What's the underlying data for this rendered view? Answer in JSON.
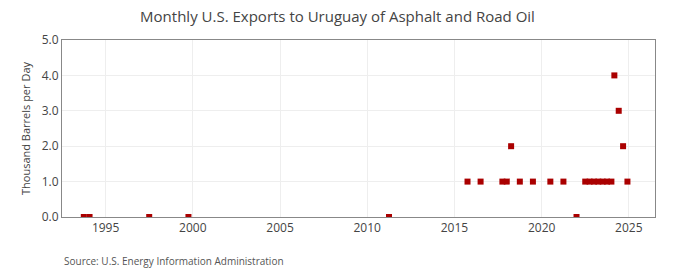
{
  "chart_data": {
    "type": "scatter",
    "title": "Monthly U.S. Exports to Uruguay of Asphalt and Road Oil",
    "ylabel": "Thousand Barrels per Day",
    "annotations": [
      "Source: U.S. Energy Information Administration"
    ],
    "x": [
      1993.75,
      1994.08,
      1997.5,
      1999.75,
      2011.25,
      2015.75,
      2016.5,
      2017.75,
      2018.0,
      2018.25,
      2018.75,
      2019.5,
      2020.5,
      2021.25,
      2022.0,
      2022.5,
      2022.75,
      2023.0,
      2023.25,
      2023.5,
      2023.75,
      2024.0,
      2024.17,
      2024.42,
      2024.67,
      2024.92
    ],
    "values": [
      0.0,
      0.0,
      0.0,
      0.0,
      0.0,
      1.0,
      1.0,
      1.0,
      1.0,
      2.0,
      1.0,
      1.0,
      1.0,
      1.0,
      0.0,
      1.0,
      1.0,
      1.0,
      1.0,
      1.0,
      1.0,
      1.0,
      4.0,
      3.0,
      2.0,
      1.0
    ],
    "color": "#aa0000",
    "marker": "square",
    "grid": true,
    "xlim": [
      1992.5,
      2026.5
    ],
    "ylim": [
      0.0,
      5.0
    ],
    "xticks": [
      1995,
      2000,
      2005,
      2010,
      2015,
      2020,
      2025
    ],
    "yticks": [
      {
        "value": 0.0,
        "label": "0.0"
      },
      {
        "value": 1.0,
        "label": "1.0"
      },
      {
        "value": 2.0,
        "label": "2.0"
      },
      {
        "value": 3.0,
        "label": "3.0"
      },
      {
        "value": 4.0,
        "label": "4.0"
      },
      {
        "value": 5.0,
        "label": "5.0"
      }
    ]
  }
}
